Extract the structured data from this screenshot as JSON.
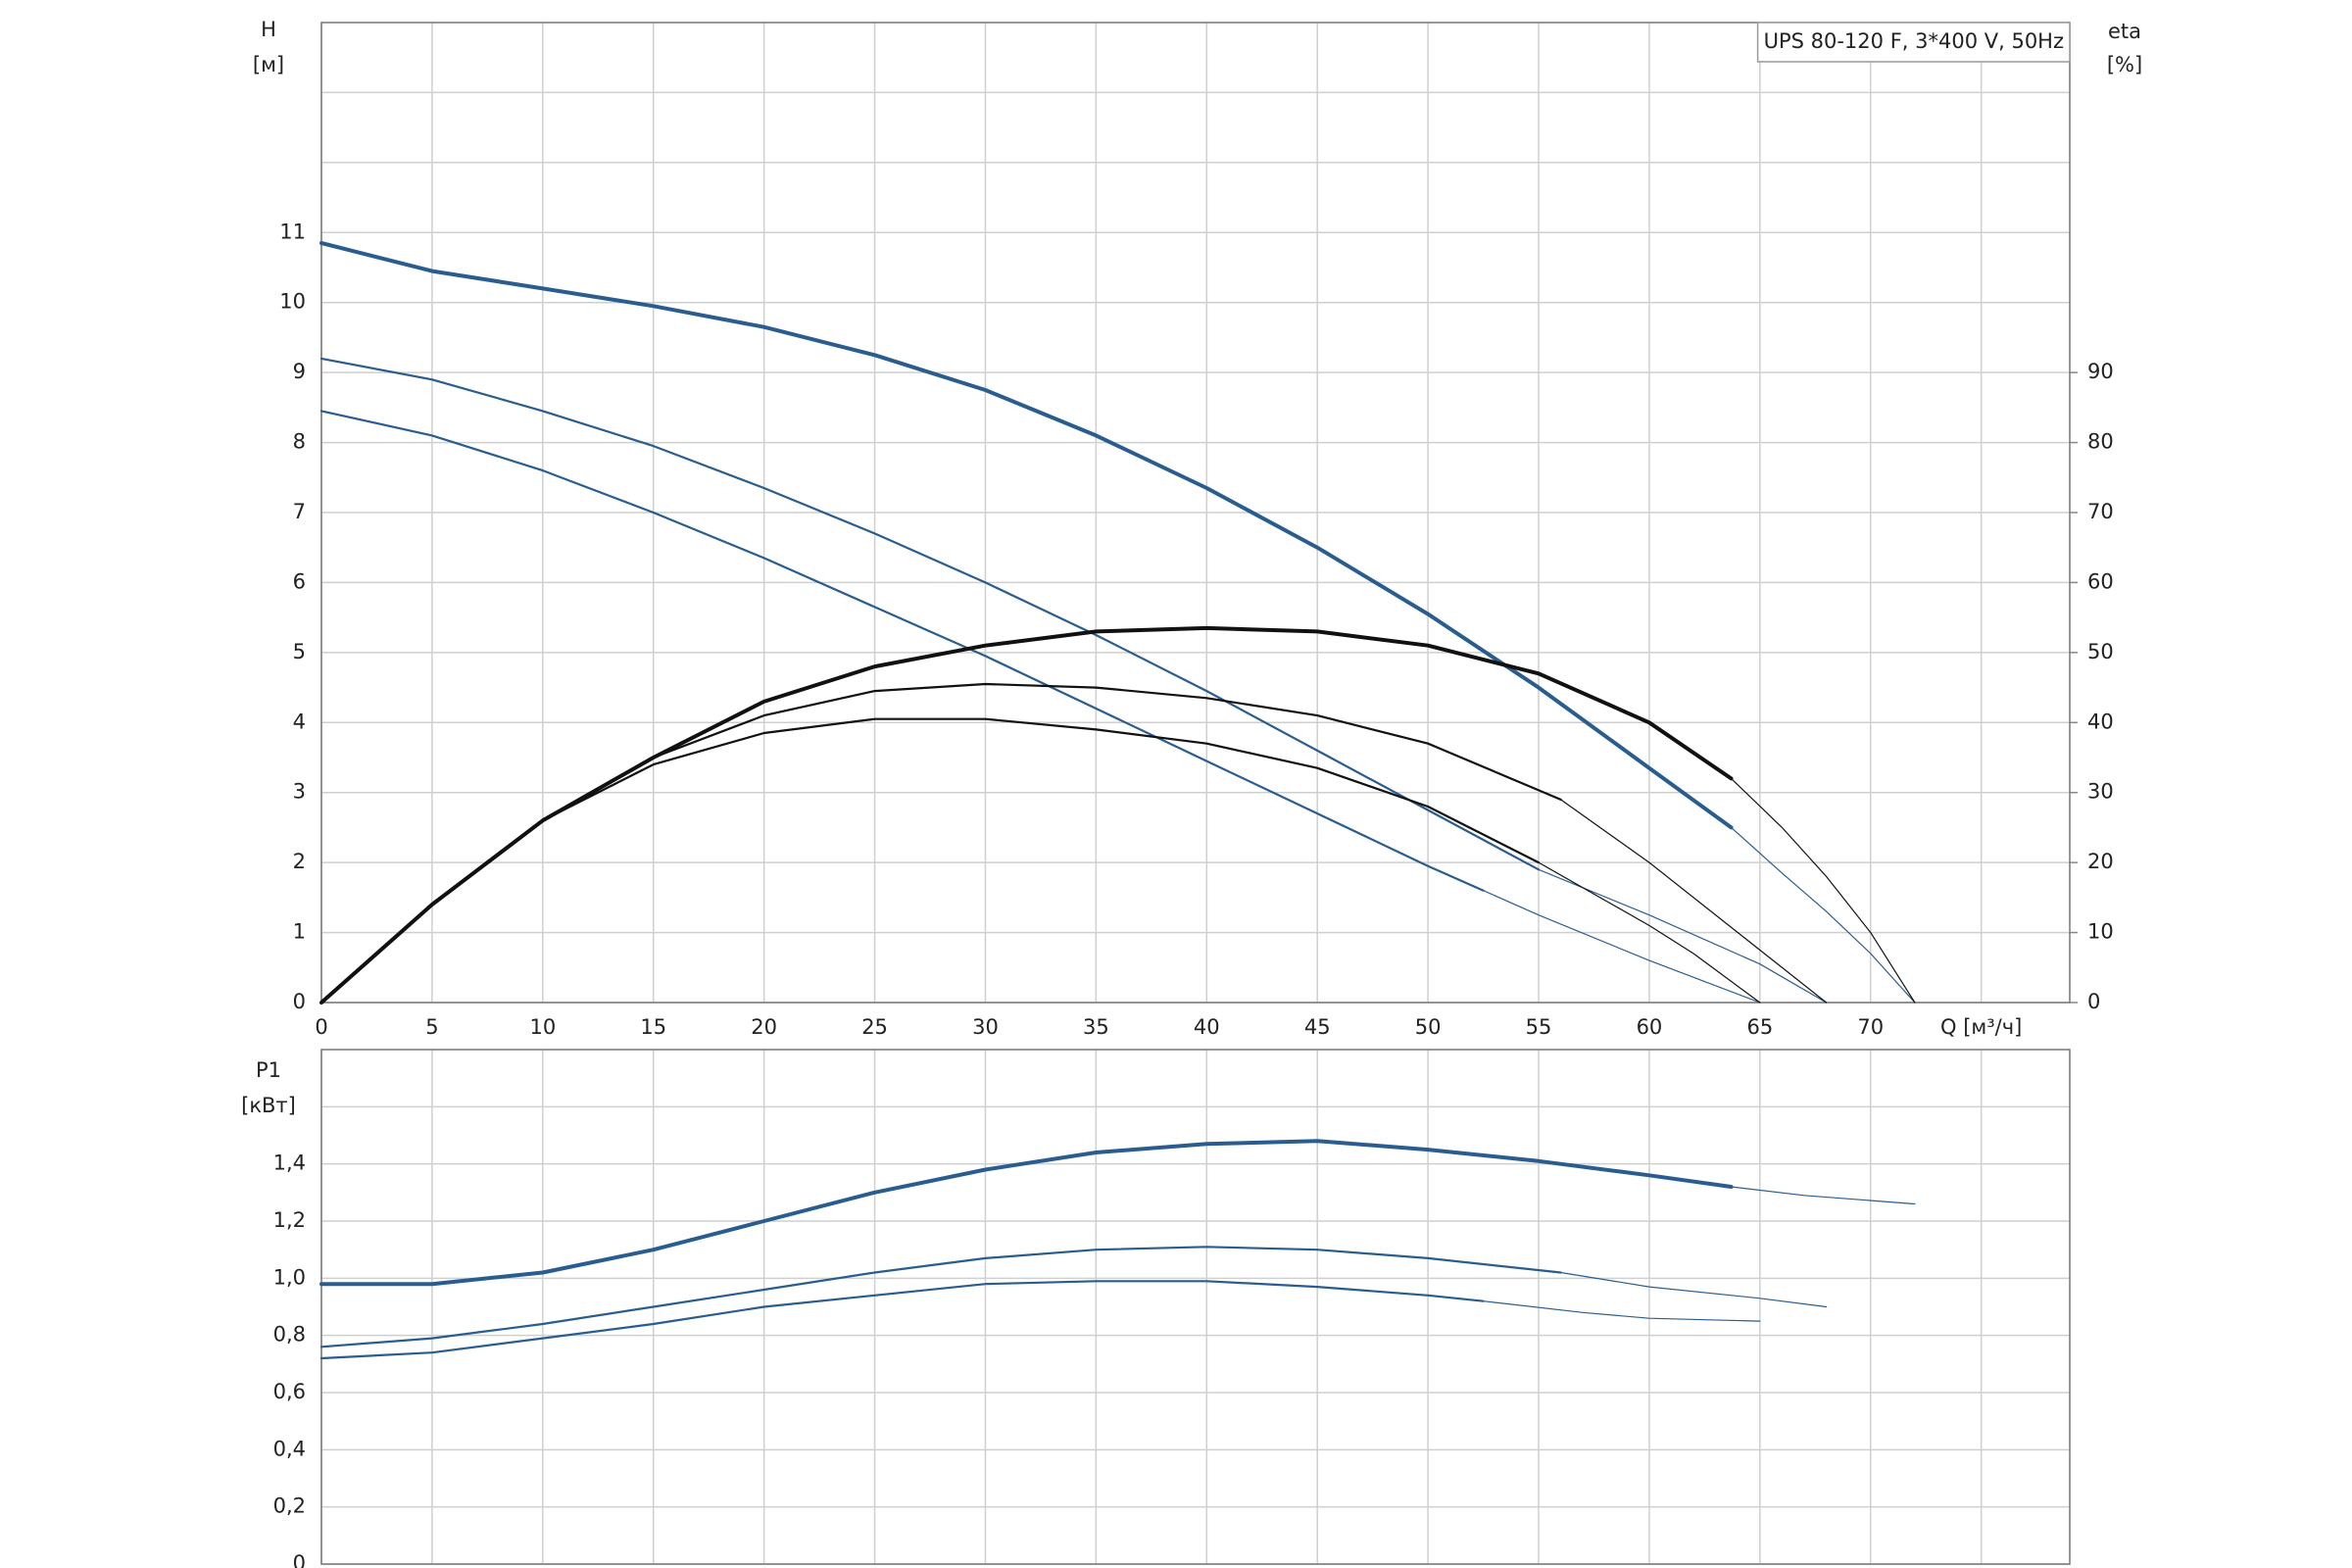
{
  "chart_data": [
    {
      "type": "line",
      "title": "UPS 80-120 F, 3*400 V, 50Hz",
      "ylabel": "H",
      "yunit": "[м]",
      "y2label": "eta",
      "y2unit": "[%]",
      "xlabel": "Q [м³/ч]",
      "xlim": [
        0,
        79
      ],
      "xticks": [
        0,
        5,
        10,
        15,
        20,
        25,
        30,
        35,
        40,
        45,
        50,
        55,
        60,
        65,
        70,
        {
          "value": 75,
          "label": null
        }
      ],
      "ylim": [
        0,
        14
      ],
      "yticks": [
        0,
        1,
        2,
        3,
        4,
        5,
        6,
        7,
        8,
        9,
        10,
        11,
        {
          "value": 12,
          "label": null
        },
        {
          "value": 13,
          "label": null
        }
      ],
      "y2lim": [
        0,
        140
      ],
      "y2ticks": [
        0,
        10,
        20,
        30,
        40,
        50,
        60,
        70,
        80,
        90
      ],
      "grid": true,
      "series": [
        {
          "color": "#2a5d8f",
          "line": "thick",
          "x": [
            0,
            5,
            10,
            15,
            20,
            25,
            30,
            35,
            40,
            45,
            50,
            55,
            60,
            63.7
          ],
          "values": [
            10.85,
            10.45,
            10.2,
            9.95,
            9.65,
            9.25,
            8.75,
            8.1,
            7.35,
            6.5,
            5.55,
            4.5,
            3.35,
            2.5
          ]
        },
        {
          "color": "#2a5d8f",
          "line": "thin",
          "x": [
            63.7,
            66,
            68,
            70,
            72
          ],
          "values": [
            2.5,
            1.85,
            1.3,
            0.7,
            0
          ]
        },
        {
          "color": "#2a5d8f",
          "line": "medium",
          "x": [
            0,
            5,
            10,
            15,
            20,
            25,
            30,
            35,
            40,
            45,
            50,
            55
          ],
          "values": [
            9.2,
            8.9,
            8.45,
            7.95,
            7.35,
            6.7,
            6.0,
            5.25,
            4.45,
            3.6,
            2.75,
            1.9
          ]
        },
        {
          "color": "#2a5d8f",
          "line": "thin",
          "x": [
            55,
            60,
            65,
            68
          ],
          "values": [
            1.9,
            1.25,
            0.55,
            0
          ]
        },
        {
          "color": "#2a5d8f",
          "line": "medium",
          "x": [
            0,
            5,
            10,
            15,
            20,
            25,
            30,
            35,
            40,
            45,
            50,
            52.5
          ],
          "values": [
            8.45,
            8.1,
            7.6,
            7.0,
            6.35,
            5.65,
            4.95,
            4.2,
            3.45,
            2.7,
            1.95,
            1.6
          ]
        },
        {
          "color": "#2a5d8f",
          "line": "thin",
          "x": [
            52.5,
            55,
            60,
            65
          ],
          "values": [
            1.6,
            1.25,
            0.6,
            0
          ]
        },
        {
          "color": "#111111",
          "line": "thick",
          "axis": "y2",
          "x": [
            0,
            5,
            10,
            15,
            20,
            25,
            30,
            35,
            40,
            45,
            50,
            55,
            60,
            63.7
          ],
          "values": [
            0,
            14,
            26,
            35,
            43,
            48,
            51,
            53,
            53.5,
            53,
            51,
            47,
            40,
            32
          ]
        },
        {
          "color": "#111111",
          "line": "thin",
          "axis": "y2",
          "x": [
            63.7,
            66,
            68,
            70,
            72
          ],
          "values": [
            32,
            25,
            18,
            10,
            0
          ]
        },
        {
          "color": "#111111",
          "line": "medium",
          "axis": "y2",
          "x": [
            0,
            5,
            10,
            15,
            20,
            25,
            30,
            35,
            40,
            45,
            50,
            56
          ],
          "values": [
            0,
            14,
            26,
            35,
            41,
            44.5,
            45.5,
            45,
            43.5,
            41,
            37,
            29
          ]
        },
        {
          "color": "#111111",
          "line": "thin",
          "axis": "y2",
          "x": [
            56,
            60,
            64,
            68
          ],
          "values": [
            29,
            20,
            10,
            0
          ]
        },
        {
          "color": "#111111",
          "line": "medium",
          "axis": "y2",
          "x": [
            0,
            5,
            10,
            15,
            20,
            25,
            30,
            35,
            40,
            45,
            50,
            55
          ],
          "values": [
            0,
            14,
            26,
            34,
            38.5,
            40.5,
            40.5,
            39,
            37,
            33.5,
            28,
            20
          ]
        },
        {
          "color": "#111111",
          "line": "thin",
          "axis": "y2",
          "x": [
            55,
            60,
            62,
            65
          ],
          "values": [
            20,
            11,
            7,
            0
          ]
        }
      ]
    },
    {
      "type": "line",
      "ylabel": "P1",
      "yunit": "[кВт]",
      "xlim": [
        0,
        79
      ],
      "xticks": [
        0,
        5,
        10,
        15,
        20,
        25,
        30,
        35,
        40,
        45,
        50,
        55,
        60,
        65,
        70,
        75
      ],
      "xtick_labels": false,
      "ylim": [
        0,
        1.8
      ],
      "yticks": [
        0,
        {
          "value": 0.2,
          "label": "0,2"
        },
        {
          "value": 0.4,
          "label": "0,4"
        },
        {
          "value": 0.6,
          "label": "0,6"
        },
        {
          "value": 0.8,
          "label": "0,8"
        },
        {
          "value": 1.0,
          "label": "1,0"
        },
        {
          "value": 1.2,
          "label": "1,2"
        },
        {
          "value": 1.4,
          "label": "1,4"
        },
        {
          "value": 1.6,
          "label": null
        }
      ],
      "grid": true,
      "series": [
        {
          "color": "#2a5d8f",
          "line": "thick",
          "x": [
            0,
            5,
            10,
            15,
            20,
            25,
            30,
            35,
            40,
            45,
            50,
            55,
            60,
            63.7
          ],
          "values": [
            0.98,
            0.98,
            1.02,
            1.1,
            1.2,
            1.3,
            1.38,
            1.44,
            1.47,
            1.48,
            1.45,
            1.41,
            1.36,
            1.32
          ]
        },
        {
          "color": "#2a5d8f",
          "line": "thin",
          "x": [
            63.7,
            67,
            72
          ],
          "values": [
            1.32,
            1.29,
            1.26
          ]
        },
        {
          "color": "#2a5d8f",
          "line": "medium",
          "x": [
            0,
            5,
            10,
            15,
            20,
            25,
            30,
            35,
            40,
            45,
            50,
            56
          ],
          "values": [
            0.76,
            0.79,
            0.84,
            0.9,
            0.96,
            1.02,
            1.07,
            1.1,
            1.11,
            1.1,
            1.07,
            1.02
          ]
        },
        {
          "color": "#2a5d8f",
          "line": "thin",
          "x": [
            56,
            60,
            65,
            68
          ],
          "values": [
            1.02,
            0.97,
            0.93,
            0.9
          ]
        },
        {
          "color": "#2a5d8f",
          "line": "medium",
          "x": [
            0,
            5,
            10,
            15,
            20,
            25,
            30,
            35,
            40,
            45,
            50,
            52.5
          ],
          "values": [
            0.72,
            0.74,
            0.79,
            0.84,
            0.9,
            0.94,
            0.98,
            0.99,
            0.99,
            0.97,
            0.94,
            0.92
          ]
        },
        {
          "color": "#2a5d8f",
          "line": "thin",
          "x": [
            52.5,
            57,
            60,
            65
          ],
          "values": [
            0.92,
            0.88,
            0.86,
            0.85
          ]
        }
      ]
    }
  ]
}
